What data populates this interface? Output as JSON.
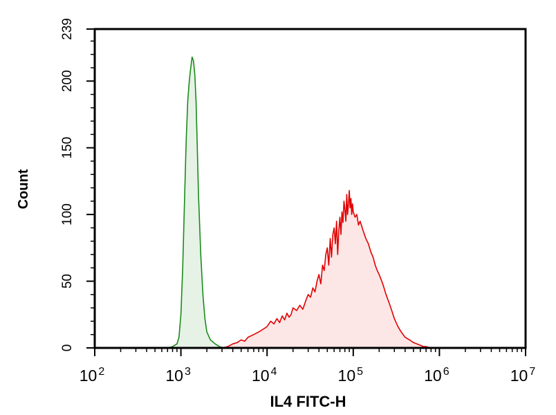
{
  "chart_data": {
    "type": "area",
    "xlabel": "IL4 FITC-H",
    "ylabel": "Count",
    "x_scale": "log",
    "xlim": [
      100,
      10000000
    ],
    "ylim": [
      0,
      239
    ],
    "x_ticks": [
      {
        "base": "10",
        "exp": "2",
        "value": 100
      },
      {
        "base": "10",
        "exp": "3",
        "value": 1000
      },
      {
        "base": "10",
        "exp": "4",
        "value": 10000
      },
      {
        "base": "10",
        "exp": "5",
        "value": 100000
      },
      {
        "base": "10",
        "exp": "6",
        "value": 1000000
      },
      {
        "base": "10",
        "exp": "7",
        "value": 10000000
      }
    ],
    "y_ticks": [
      {
        "label": "0",
        "value": 0
      },
      {
        "label": "50",
        "value": 50
      },
      {
        "label": "100",
        "value": 100
      },
      {
        "label": "150",
        "value": 150
      },
      {
        "label": "200",
        "value": 200
      },
      {
        "label": "239",
        "value": 239
      }
    ],
    "grid": false,
    "legend": "none",
    "series": [
      {
        "color": "#1a8a1a",
        "fill": "#e6f2e6",
        "x": [
          700,
          800,
          900,
          950,
          1000,
          1050,
          1100,
          1150,
          1200,
          1250,
          1300,
          1350,
          1400,
          1450,
          1500,
          1550,
          1600,
          1700,
          1800,
          1900,
          2000,
          2200,
          2500,
          2800,
          3200
        ],
        "y": [
          0,
          1,
          3,
          8,
          25,
          60,
          110,
          155,
          185,
          200,
          210,
          218,
          215,
          205,
          185,
          150,
          115,
          70,
          40,
          22,
          12,
          6,
          3,
          1,
          0
        ]
      },
      {
        "color": "#e00000",
        "fill": "#fde6e6",
        "x": [
          3000,
          3500,
          4000,
          4500,
          5000,
          5500,
          6000,
          7000,
          8000,
          9000,
          10000,
          11000,
          12000,
          13000,
          14000,
          15000,
          16000,
          17000,
          18000,
          19000,
          20000,
          22000,
          24000,
          26000,
          28000,
          30000,
          32000,
          34000,
          36000,
          38000,
          40000,
          42000,
          44000,
          46000,
          48000,
          50000,
          52000,
          54000,
          56000,
          58000,
          60000,
          62000,
          64000,
          66000,
          68000,
          70000,
          72000,
          74000,
          76000,
          78000,
          80000,
          82000,
          84000,
          86000,
          88000,
          90000,
          92000,
          94000,
          96000,
          98000,
          100000,
          105000,
          110000,
          115000,
          120000,
          130000,
          140000,
          150000,
          160000,
          170000,
          180000,
          190000,
          200000,
          220000,
          240000,
          260000,
          280000,
          300000,
          330000,
          360000,
          400000,
          450000,
          500000,
          550000,
          600000,
          650000,
          700000,
          800000,
          900000,
          1000000,
          1200000
        ],
        "y": [
          0,
          1,
          3,
          4,
          6,
          5,
          8,
          10,
          12,
          14,
          16,
          20,
          18,
          22,
          19,
          24,
          21,
          26,
          23,
          25,
          30,
          28,
          32,
          29,
          35,
          40,
          38,
          45,
          42,
          50,
          55,
          48,
          62,
          58,
          70,
          75,
          62,
          82,
          68,
          85,
          90,
          78,
          95,
          70,
          88,
          98,
          85,
          102,
          94,
          110,
          104,
          95,
          115,
          100,
          108,
          118,
          105,
          112,
          100,
          108,
          102,
          98,
          100,
          92,
          95,
          88,
          82,
          78,
          72,
          68,
          62,
          58,
          55,
          48,
          40,
          34,
          28,
          22,
          16,
          12,
          8,
          6,
          4,
          3,
          2,
          1,
          1,
          0,
          0,
          0,
          0
        ]
      }
    ]
  }
}
